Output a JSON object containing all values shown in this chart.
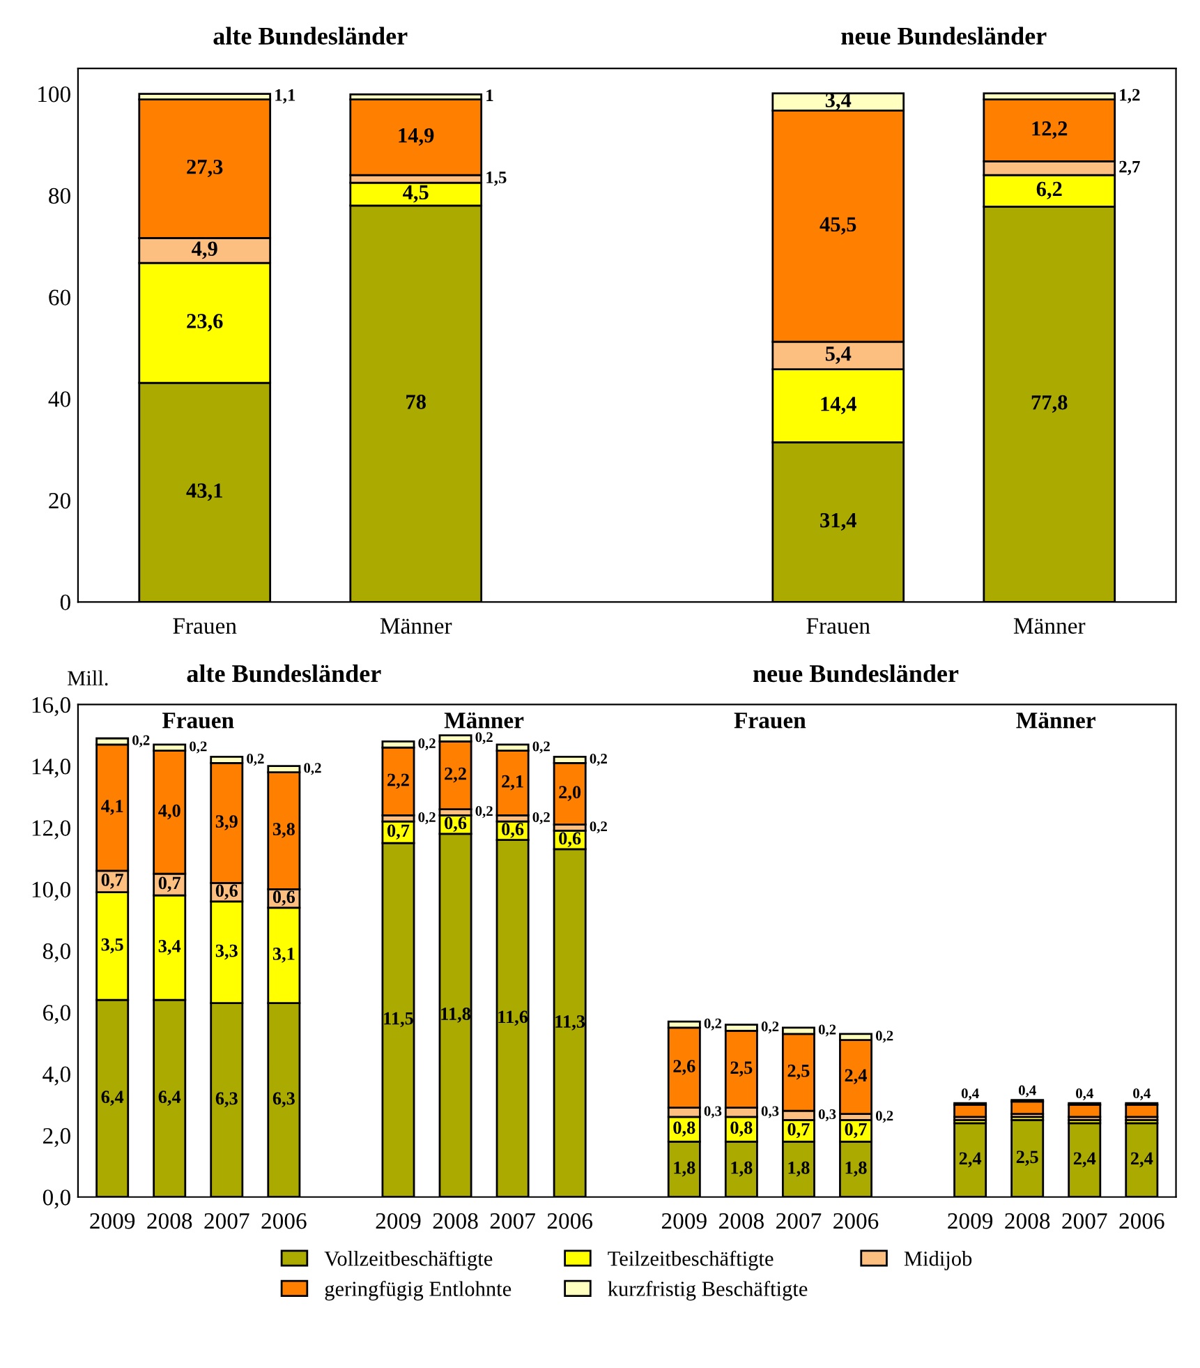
{
  "chart_data": [
    {
      "type": "bar",
      "stacked": true,
      "categories": [
        "Frauen",
        "Männer",
        null,
        "Frauen",
        "Männer"
      ],
      "ylim": [
        0,
        105
      ],
      "yticks": [
        0,
        20,
        40,
        60,
        80,
        100
      ],
      "grid": false,
      "legend": false,
      "annotations": [
        "alte Bundesländer",
        "neue Bundesländer"
      ],
      "series": [
        {
          "color": "#aaaa00",
          "values": [
            43.1,
            78,
            null,
            31.4,
            77.8
          ],
          "value_labels": [
            "43,1",
            "78",
            null,
            "31,4",
            "77,8"
          ]
        },
        {
          "color": "#ffff00",
          "values": [
            23.6,
            4.5,
            null,
            14.4,
            6.2
          ],
          "value_labels": [
            "23,6",
            "4,5",
            null,
            "14,4",
            "6,2"
          ]
        },
        {
          "color": "#fcbf80",
          "values": [
            4.9,
            1.5,
            null,
            5.4,
            2.7
          ],
          "value_labels": [
            "4,9",
            "1,5",
            null,
            "5,4",
            "2,7"
          ]
        },
        {
          "color": "#ff8000",
          "values": [
            27.3,
            14.9,
            null,
            45.5,
            12.2
          ],
          "value_labels": [
            "27,3",
            "14,9",
            null,
            "45,5",
            "12,2"
          ]
        },
        {
          "color": "#ffffc0",
          "values": [
            1.1,
            1,
            null,
            3.4,
            1.2
          ],
          "value_labels": [
            "1,1",
            "1",
            null,
            "3,4",
            "1,2"
          ]
        }
      ]
    },
    {
      "type": "bar",
      "stacked": true,
      "ylabel": "Mill.",
      "categories": [
        "2009",
        "2008",
        "2007",
        "2006",
        null,
        "2009",
        "2008",
        "2007",
        "2006",
        null,
        "2009",
        "2008",
        "2007",
        "2006",
        null,
        "2009",
        "2008",
        "2007",
        "2006"
      ],
      "ylim": [
        0,
        16
      ],
      "yticks": [
        {
          "value": 0,
          "label": "0,0"
        },
        {
          "value": 2,
          "label": "2,0"
        },
        {
          "value": 4,
          "label": "4,0"
        },
        {
          "value": 6,
          "label": "6,0"
        },
        {
          "value": 8,
          "label": "8,0"
        },
        {
          "value": 10,
          "label": "10,0"
        },
        {
          "value": 12,
          "label": "12,0"
        },
        {
          "value": 14,
          "label": "14,0"
        },
        {
          "value": 16,
          "label": "16,0"
        }
      ],
      "grid": false,
      "legend": "bottom",
      "annotations": [
        "alte Bundesländer",
        "neue Bundesländer",
        "Frauen",
        "Männer",
        "Frauen",
        "Männer"
      ],
      "series": [
        {
          "name": "Vollzeitbeschäftigte",
          "color": "#aaaa00",
          "values": [
            6.4,
            6.4,
            6.3,
            6.3,
            null,
            11.5,
            11.8,
            11.6,
            11.3,
            null,
            1.8,
            1.8,
            1.8,
            1.8,
            null,
            2.4,
            2.5,
            2.4,
            2.4
          ],
          "value_labels": [
            "6,4",
            "6,4",
            "6,3",
            "6,3",
            null,
            "11,5",
            "11,8",
            "11,6",
            "11,3",
            null,
            "1,8",
            "1,8",
            "1,8",
            "1,8",
            null,
            "2,4",
            "2,5",
            "2,4",
            "2,4"
          ]
        },
        {
          "name": "Teilzeitbeschäftigte",
          "color": "#ffff00",
          "values": [
            3.5,
            3.4,
            3.3,
            3.1,
            null,
            0.7,
            0.6,
            0.6,
            0.6,
            null,
            0.8,
            0.8,
            0.7,
            0.7,
            null,
            0.1,
            0.1,
            0.1,
            0.1
          ],
          "value_labels": [
            "3,5",
            "3,4",
            "3,3",
            "3,1",
            null,
            "0,7",
            "0,6",
            "0,6",
            "0,6",
            null,
            "0,8",
            "0,8",
            "0,7",
            "0,7",
            null,
            null,
            null,
            null,
            null
          ]
        },
        {
          "name": "Midijob",
          "color": "#fcbf80",
          "values": [
            0.7,
            0.7,
            0.6,
            0.6,
            null,
            0.2,
            0.2,
            0.2,
            0.2,
            null,
            0.3,
            0.3,
            0.3,
            0.2,
            null,
            0.1,
            0.1,
            0.1,
            0.1
          ],
          "value_labels": [
            "0,7",
            "0,7",
            "0,6",
            "0,6",
            null,
            "0,2",
            "0,2",
            "0,2",
            "0,2",
            null,
            "0,3",
            "0,3",
            "0,3",
            "0,2",
            null,
            null,
            null,
            null,
            null
          ]
        },
        {
          "name": "geringfügig Entlohnte",
          "color": "#ff8000",
          "values": [
            4.1,
            4.0,
            3.9,
            3.8,
            null,
            2.2,
            2.2,
            2.1,
            2.0,
            null,
            2.6,
            2.5,
            2.5,
            2.4,
            null,
            0.4,
            0.4,
            0.4,
            0.4
          ],
          "value_labels": [
            "4,1",
            "4,0",
            "3,9",
            "3,8",
            null,
            "2,2",
            "2,2",
            "2,1",
            "2,0",
            null,
            "2,6",
            "2,5",
            "2,5",
            "2,4",
            null,
            "0,4",
            "0,4",
            "0,4",
            "0,4"
          ]
        },
        {
          "name": "kurzfristig Beschäftigte",
          "color": "#ffffc0",
          "values": [
            0.2,
            0.2,
            0.2,
            0.2,
            null,
            0.2,
            0.2,
            0.2,
            0.2,
            null,
            0.2,
            0.2,
            0.2,
            0.2,
            null,
            0.05,
            0.05,
            0.05,
            0.05
          ],
          "value_labels": [
            "0,2",
            "0,2",
            "0,2",
            "0,2",
            null,
            "0,2",
            "0,2",
            "0,2",
            "0,2",
            null,
            "0,2",
            "0,2",
            "0,2",
            "0,2",
            null,
            null,
            null,
            null,
            null
          ]
        }
      ]
    }
  ]
}
